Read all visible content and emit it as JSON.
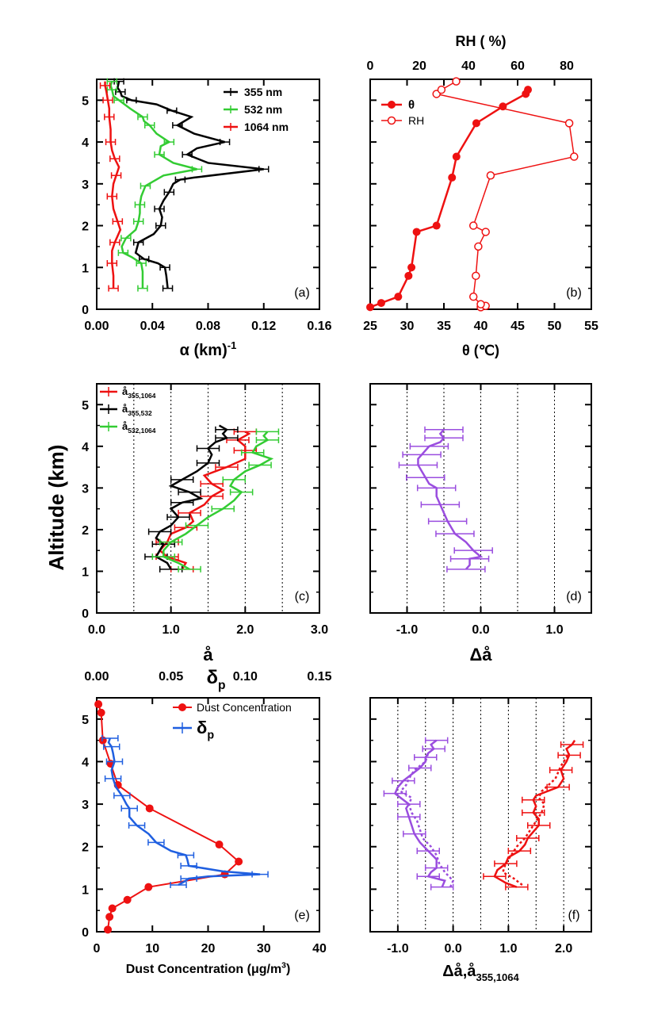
{
  "figure": {
    "shared_ylabel": "Altitude (km)",
    "panels": [
      {
        "id": "a",
        "label": "(a)",
        "xlabel": "α  (km)",
        "xlabel_sup": "-1",
        "xticks": [
          "0.00",
          "0.04",
          "0.08",
          "0.12",
          "0.16"
        ],
        "yticks": [
          "0",
          "1",
          "2",
          "3",
          "4",
          "5"
        ]
      },
      {
        "id": "b",
        "label": "(b)",
        "xlabel": "θ (℃)",
        "top_label": "RH ( %)",
        "xticks": [
          "25",
          "30",
          "35",
          "40",
          "45",
          "50",
          "55"
        ],
        "top_ticks": [
          "0",
          "20",
          "40",
          "60",
          "80"
        ]
      },
      {
        "id": "c",
        "label": "(c)",
        "xlabel": "å",
        "xticks": [
          "0.0",
          "1.0",
          "2.0",
          "3.0"
        ],
        "yticks": [
          "0",
          "1",
          "2",
          "3",
          "4",
          "5"
        ]
      },
      {
        "id": "d",
        "label": "(d)",
        "xlabel": "Δå",
        "xticks": [
          "-1.0",
          "0.0",
          "1.0"
        ]
      },
      {
        "id": "e",
        "label": "(e)",
        "xlabel": "Dust Concentration (μg/m",
        "xlabel_sup": "3",
        "xlabel_end": ")",
        "top_label": "δ",
        "top_label_sub": "p",
        "xticks": [
          "0",
          "10",
          "20",
          "30",
          "40"
        ],
        "top_ticks": [
          "0.00",
          "0.05",
          "0.10",
          "0.15"
        ],
        "yticks": [
          "0",
          "1",
          "2",
          "3",
          "4",
          "5"
        ]
      },
      {
        "id": "f",
        "label": "(f)",
        "xlabel": "Δå,å",
        "xlabel_sub": "355,1064",
        "xticks": [
          "-1.0",
          "0.0",
          "1.0",
          "2.0"
        ]
      }
    ],
    "legends": {
      "a": [
        {
          "text": "355  nm",
          "color": "#000000"
        },
        {
          "text": "532  nm",
          "color": "#33cc33"
        },
        {
          "text": "1064 nm",
          "color": "#ee1111"
        }
      ],
      "b": [
        {
          "text": "θ",
          "color": "#ee1111"
        },
        {
          "text": "RH",
          "color": "#ee1111"
        }
      ],
      "c": [
        {
          "text": "å",
          "sub": "355,1064",
          "color": "#ee1111"
        },
        {
          "text": "å",
          "sub": "355,532",
          "color": "#000000"
        },
        {
          "text": "å",
          "sub": "532,1064",
          "color": "#33cc33"
        }
      ],
      "e": [
        {
          "text": "Dust Concentration",
          "color": "#ee1111"
        },
        {
          "text": "δ",
          "sub": "p",
          "color": "#1f5fe0"
        }
      ]
    }
  },
  "chart_data": [
    {
      "panel": "a",
      "type": "line",
      "xlim": [
        0,
        0.16
      ],
      "ylim": [
        0,
        5.5
      ],
      "xlabel": "α  (km)-1",
      "ylabel": "Altitude (km)",
      "series": [
        {
          "name": "355  nm",
          "color": "#000000",
          "x": [
            0.051,
            0.05,
            0.049,
            0.044,
            0.034,
            0.028,
            0.03,
            0.041,
            0.046,
            0.047,
            0.045,
            0.048,
            0.052,
            0.055,
            0.06,
            0.07,
            0.12,
            0.08,
            0.065,
            0.072,
            0.092,
            0.07,
            0.058,
            0.068,
            0.054,
            0.043,
            0.025,
            0.018,
            0.017,
            0.015,
            0.016
          ],
          "y": [
            0.5,
            0.8,
            1.0,
            1.1,
            1.2,
            1.35,
            1.6,
            1.8,
            2.0,
            2.2,
            2.4,
            2.6,
            2.8,
            3.0,
            3.1,
            3.15,
            3.35,
            3.5,
            3.7,
            3.85,
            4.0,
            4.2,
            4.4,
            4.6,
            4.75,
            4.9,
            5.0,
            5.1,
            5.2,
            5.3,
            5.45
          ]
        },
        {
          "name": "532  nm",
          "color": "#33cc33",
          "x": [
            0.033,
            0.033,
            0.032,
            0.025,
            0.019,
            0.018,
            0.021,
            0.028,
            0.03,
            0.031,
            0.031,
            0.032,
            0.035,
            0.048,
            0.072,
            0.055,
            0.045,
            0.046,
            0.052,
            0.043,
            0.038,
            0.034,
            0.033,
            0.024,
            0.016,
            0.012,
            0.011,
            0.01,
            0.011
          ],
          "y": [
            0.5,
            0.9,
            1.1,
            1.25,
            1.35,
            1.5,
            1.7,
            1.9,
            2.1,
            2.3,
            2.5,
            2.7,
            2.95,
            3.2,
            3.35,
            3.5,
            3.7,
            3.9,
            4.0,
            4.2,
            4.4,
            4.5,
            4.6,
            4.8,
            5.0,
            5.1,
            5.25,
            5.35,
            5.45
          ]
        },
        {
          "name": "1064 nm",
          "color": "#ee1111",
          "x": [
            0.012,
            0.012,
            0.011,
            0.011,
            0.013,
            0.017,
            0.015,
            0.012,
            0.011,
            0.012,
            0.014,
            0.016,
            0.013,
            0.011,
            0.01,
            0.01,
            0.009,
            0.009,
            0.008,
            0.007,
            0.006,
            0.006
          ],
          "y": [
            0.5,
            0.8,
            1.1,
            1.4,
            1.6,
            1.9,
            2.1,
            2.4,
            2.7,
            3.0,
            3.2,
            3.4,
            3.6,
            3.8,
            4.0,
            4.3,
            4.6,
            4.8,
            5.0,
            5.2,
            5.35,
            5.45
          ]
        }
      ]
    },
    {
      "panel": "b",
      "type": "line",
      "xlim": [
        25,
        55
      ],
      "ylim": [
        0,
        5.5
      ],
      "top_xlim": [
        0,
        90
      ],
      "series": [
        {
          "name": "θ",
          "axis": "bottom",
          "color": "#ee1111",
          "marker": "filled",
          "x": [
            25.0,
            26.5,
            28.8,
            30.2,
            30.6,
            31.3,
            34.0,
            36.1,
            36.7,
            39.4,
            43.0,
            46.1,
            46.4
          ],
          "y": [
            0.05,
            0.15,
            0.3,
            0.8,
            1.0,
            1.85,
            2.0,
            3.15,
            3.65,
            4.45,
            4.85,
            5.15,
            5.25
          ]
        },
        {
          "name": "RH",
          "axis": "top",
          "color": "#ee1111",
          "marker": "open",
          "x": [
            45,
            47,
            45,
            42,
            43,
            44,
            47,
            42,
            49,
            83,
            81,
            27,
            29,
            35
          ],
          "y": [
            0.05,
            0.08,
            0.12,
            0.3,
            0.8,
            1.5,
            1.85,
            2.0,
            3.2,
            3.65,
            4.45,
            5.15,
            5.25,
            5.45
          ]
        }
      ]
    },
    {
      "panel": "c",
      "type": "line",
      "xlim": [
        0,
        3
      ],
      "ylim": [
        0,
        5.5
      ],
      "series": [
        {
          "name": "å355,1064",
          "color": "#ee1111",
          "x": [
            1.15,
            1.2,
            0.95,
            0.85,
            0.95,
            1.0,
            1.2,
            1.3,
            1.25,
            1.45,
            1.55,
            1.7,
            1.55,
            1.45,
            1.75,
            2.0,
            2.0,
            2.0,
            1.9,
            2.05,
            2.0
          ],
          "y": [
            1.05,
            1.2,
            1.35,
            1.5,
            1.7,
            1.9,
            2.05,
            2.2,
            2.4,
            2.6,
            2.8,
            2.95,
            3.1,
            3.3,
            3.5,
            3.7,
            3.9,
            4.0,
            4.15,
            4.3,
            4.35
          ]
        },
        {
          "name": "å355,532",
          "color": "#000000",
          "x": [
            1.0,
            0.95,
            0.8,
            0.85,
            0.9,
            0.8,
            0.85,
            1.0,
            1.1,
            1.0,
            1.15,
            1.4,
            1.25,
            1.0,
            1.15,
            1.35,
            1.5,
            1.55,
            1.5,
            1.6,
            1.75,
            1.7,
            1.75,
            1.65
          ],
          "y": [
            1.05,
            1.2,
            1.35,
            1.5,
            1.65,
            1.8,
            1.95,
            2.1,
            2.3,
            2.5,
            2.65,
            2.75,
            2.9,
            3.05,
            3.2,
            3.4,
            3.6,
            3.8,
            3.95,
            4.1,
            4.2,
            4.3,
            4.4,
            4.5
          ]
        },
        {
          "name": "å532,1064",
          "color": "#33cc33",
          "x": [
            1.25,
            1.1,
            0.9,
            0.9,
            1.0,
            1.2,
            1.35,
            1.5,
            1.7,
            1.85,
            1.95,
            1.8,
            1.85,
            2.0,
            2.2,
            2.35,
            2.1,
            2.15,
            2.3,
            2.25,
            2.3
          ],
          "y": [
            1.05,
            1.2,
            1.35,
            1.5,
            1.7,
            1.9,
            2.1,
            2.3,
            2.5,
            2.7,
            2.9,
            3.05,
            3.2,
            3.4,
            3.55,
            3.7,
            3.85,
            4.0,
            4.15,
            4.25,
            4.35
          ]
        }
      ]
    },
    {
      "panel": "d",
      "type": "line",
      "xlim": [
        -1.5,
        1.5
      ],
      "ylim": [
        0,
        5.5
      ],
      "series": [
        {
          "name": "Δå",
          "color": "#9a4ddf",
          "x": [
            -0.2,
            -0.15,
            -0.15,
            0.0,
            -0.1,
            -0.2,
            -0.35,
            -0.4,
            -0.45,
            -0.5,
            -0.55,
            -0.6,
            -0.6,
            -0.7,
            -0.75,
            -0.8,
            -0.85,
            -0.85,
            -0.8,
            -0.75,
            -0.7,
            -0.55,
            -0.5,
            -0.55,
            -0.5
          ],
          "y": [
            1.05,
            1.15,
            1.3,
            1.35,
            1.5,
            1.7,
            1.9,
            2.05,
            2.2,
            2.4,
            2.6,
            2.8,
            3.0,
            3.1,
            3.25,
            3.4,
            3.55,
            3.7,
            3.8,
            3.9,
            4.0,
            4.1,
            4.2,
            4.3,
            4.4
          ]
        }
      ]
    },
    {
      "panel": "e",
      "type": "line",
      "xlim": [
        0,
        40
      ],
      "ylim": [
        0,
        5.5
      ],
      "top_xlim": [
        0,
        0.15
      ],
      "series": [
        {
          "name": "Dust Concentration",
          "axis": "bottom",
          "color": "#ee1111",
          "marker": "filled",
          "x": [
            2.0,
            2.3,
            2.8,
            5.5,
            9.3,
            23.0,
            25.5,
            22.0,
            9.5,
            3.8,
            2.5,
            1.1,
            0.8,
            0.3
          ],
          "y": [
            0.05,
            0.35,
            0.55,
            0.75,
            1.05,
            1.35,
            1.65,
            2.05,
            2.9,
            3.45,
            3.95,
            4.5,
            5.15,
            5.35
          ]
        },
        {
          "name": "δp",
          "axis": "top",
          "color": "#1f5fe0",
          "x": [
            0.055,
            0.06,
            0.062,
            0.075,
            0.11,
            0.085,
            0.062,
            0.061,
            0.06,
            0.05,
            0.04,
            0.035,
            0.027,
            0.022,
            0.022,
            0.02,
            0.017,
            0.013,
            0.011,
            0.01,
            0.012,
            0.011,
            0.01,
            0.008,
            0.009
          ],
          "y": [
            1.1,
            1.2,
            1.25,
            1.3,
            1.35,
            1.42,
            1.55,
            1.7,
            1.8,
            1.9,
            2.1,
            2.3,
            2.5,
            2.7,
            2.9,
            3.0,
            3.2,
            3.4,
            3.6,
            3.8,
            4.0,
            4.2,
            4.35,
            4.45,
            4.55
          ]
        }
      ]
    },
    {
      "panel": "f",
      "type": "line",
      "xlim": [
        -1.5,
        2.5
      ],
      "ylim": [
        0,
        5.5
      ],
      "series": [
        {
          "name": "Δå",
          "color": "#9a4ddf",
          "x": [
            -0.2,
            -0.15,
            -0.45,
            -0.4,
            -0.3,
            -0.3,
            -0.45,
            -0.6,
            -0.7,
            -0.75,
            -0.8,
            -0.85,
            -0.8,
            -0.9,
            -1.05,
            -1.0,
            -0.9,
            -0.75,
            -0.6,
            -0.5,
            -0.5,
            -0.45,
            -0.35,
            -0.4,
            -0.3
          ],
          "y": [
            1.05,
            1.2,
            1.3,
            1.4,
            1.5,
            1.7,
            1.9,
            2.1,
            2.3,
            2.5,
            2.7,
            2.9,
            3.0,
            3.1,
            3.25,
            3.4,
            3.55,
            3.7,
            3.85,
            4.0,
            4.1,
            4.2,
            4.3,
            4.4,
            4.5
          ]
        },
        {
          "name": "Δå (dotted)",
          "color": "#9a4ddf",
          "dash": true,
          "x": [
            -0.05,
            0.0,
            -0.15,
            -0.25,
            -0.3,
            -0.4,
            -0.55,
            -0.6,
            -0.65,
            -0.75,
            -0.8,
            -0.75,
            -0.95,
            -0.85,
            -0.8,
            -0.7,
            -0.5,
            -0.45
          ],
          "y": [
            1.05,
            1.2,
            1.4,
            1.6,
            1.8,
            2.0,
            2.2,
            2.4,
            2.6,
            2.8,
            3.0,
            3.15,
            3.3,
            3.45,
            3.6,
            3.8,
            4.0,
            4.2
          ]
        },
        {
          "name": "å355,1064",
          "color": "#ee1111",
          "x": [
            1.15,
            0.95,
            0.75,
            0.8,
            0.95,
            1.0,
            1.2,
            1.3,
            1.35,
            1.45,
            1.55,
            1.55,
            1.45,
            1.5,
            1.45,
            1.5,
            1.9,
            2.0,
            1.95,
            2.05,
            2.1,
            2.05,
            2.15,
            2.2
          ],
          "y": [
            1.05,
            1.15,
            1.3,
            1.45,
            1.6,
            1.75,
            1.9,
            2.05,
            2.2,
            2.35,
            2.5,
            2.65,
            2.8,
            2.95,
            3.1,
            3.2,
            3.4,
            3.6,
            3.8,
            4.0,
            4.15,
            4.3,
            4.4,
            4.5
          ]
        },
        {
          "name": "å355,1064 (dotted)",
          "color": "#ee1111",
          "dash": true,
          "x": [
            1.25,
            1.1,
            0.9,
            0.95,
            1.05,
            1.15,
            1.3,
            1.4,
            1.5,
            1.6,
            1.65,
            1.55,
            1.6,
            1.85,
            1.95,
            2.1
          ],
          "y": [
            1.1,
            1.25,
            1.4,
            1.6,
            1.8,
            2.0,
            2.2,
            2.4,
            2.6,
            2.8,
            3.0,
            3.15,
            3.3,
            3.6,
            3.9,
            4.2
          ]
        }
      ]
    }
  ]
}
